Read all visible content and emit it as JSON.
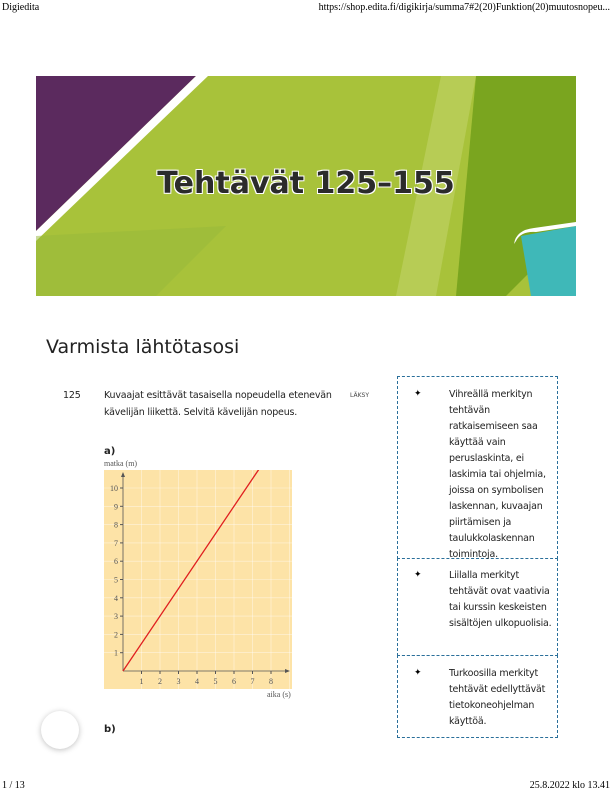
{
  "header": {
    "site": "Digiedita",
    "url": "https://shop.edita.fi/digikirja/summa7#2(20)Funktion(20)muutosnopeu..."
  },
  "banner": {
    "title": "Tehtävät 125–155",
    "colors": {
      "purple": "#5b2a5e",
      "light_green": "#a8c23a",
      "dark_green": "#7aa51f",
      "teal": "#3fb8b8"
    }
  },
  "section_title": "Varmista lähtötasosi",
  "task": {
    "number": "125",
    "text": "Kuvaajat esittävät tasaisella nopeudella etenevän kävelijän liikettä. Selvitä kävelijän nopeus.",
    "tag": "LÄKSY",
    "part_a": "a)",
    "part_b": "b)"
  },
  "notes": [
    {
      "icon": "✦",
      "text": "Vihreällä merkityn tehtävän ratkaisemiseen saa käyttää vain peruslaskinta, ei laskimia tai ohjelmia, joissa on symbolisen laskennan, kuvaajan piirtämisen ja taulukkolaskennan toimintoja."
    },
    {
      "icon": "✦",
      "text": "Liilalla merkityt tehtävät ovat vaativia tai kurssin keskeisten sisältöjen ulkopuolisia."
    },
    {
      "icon": "✦",
      "text": "Turkoosilla merkityt tehtävät edellyttävät tietokoneohjelman käyttöä."
    }
  ],
  "chart_data": {
    "type": "line",
    "xlabel": "aika (s)",
    "ylabel": "matka (m)",
    "xlim": [
      0,
      8.5
    ],
    "ylim": [
      0,
      11
    ],
    "xticks": [
      "1",
      "2",
      "3",
      "4",
      "5",
      "6",
      "7",
      "8"
    ],
    "yticks": [
      "1",
      "2",
      "3",
      "4",
      "5",
      "6",
      "7",
      "8",
      "9",
      "10"
    ],
    "grid": true,
    "background": "#fde3a7",
    "line_color": "#e02020",
    "series": [
      {
        "x": [
          0,
          7.33
        ],
        "y": [
          0,
          11
        ]
      }
    ]
  },
  "footer": {
    "page": "1 / 13",
    "datetime": "25.8.2022 klo 13.41"
  }
}
